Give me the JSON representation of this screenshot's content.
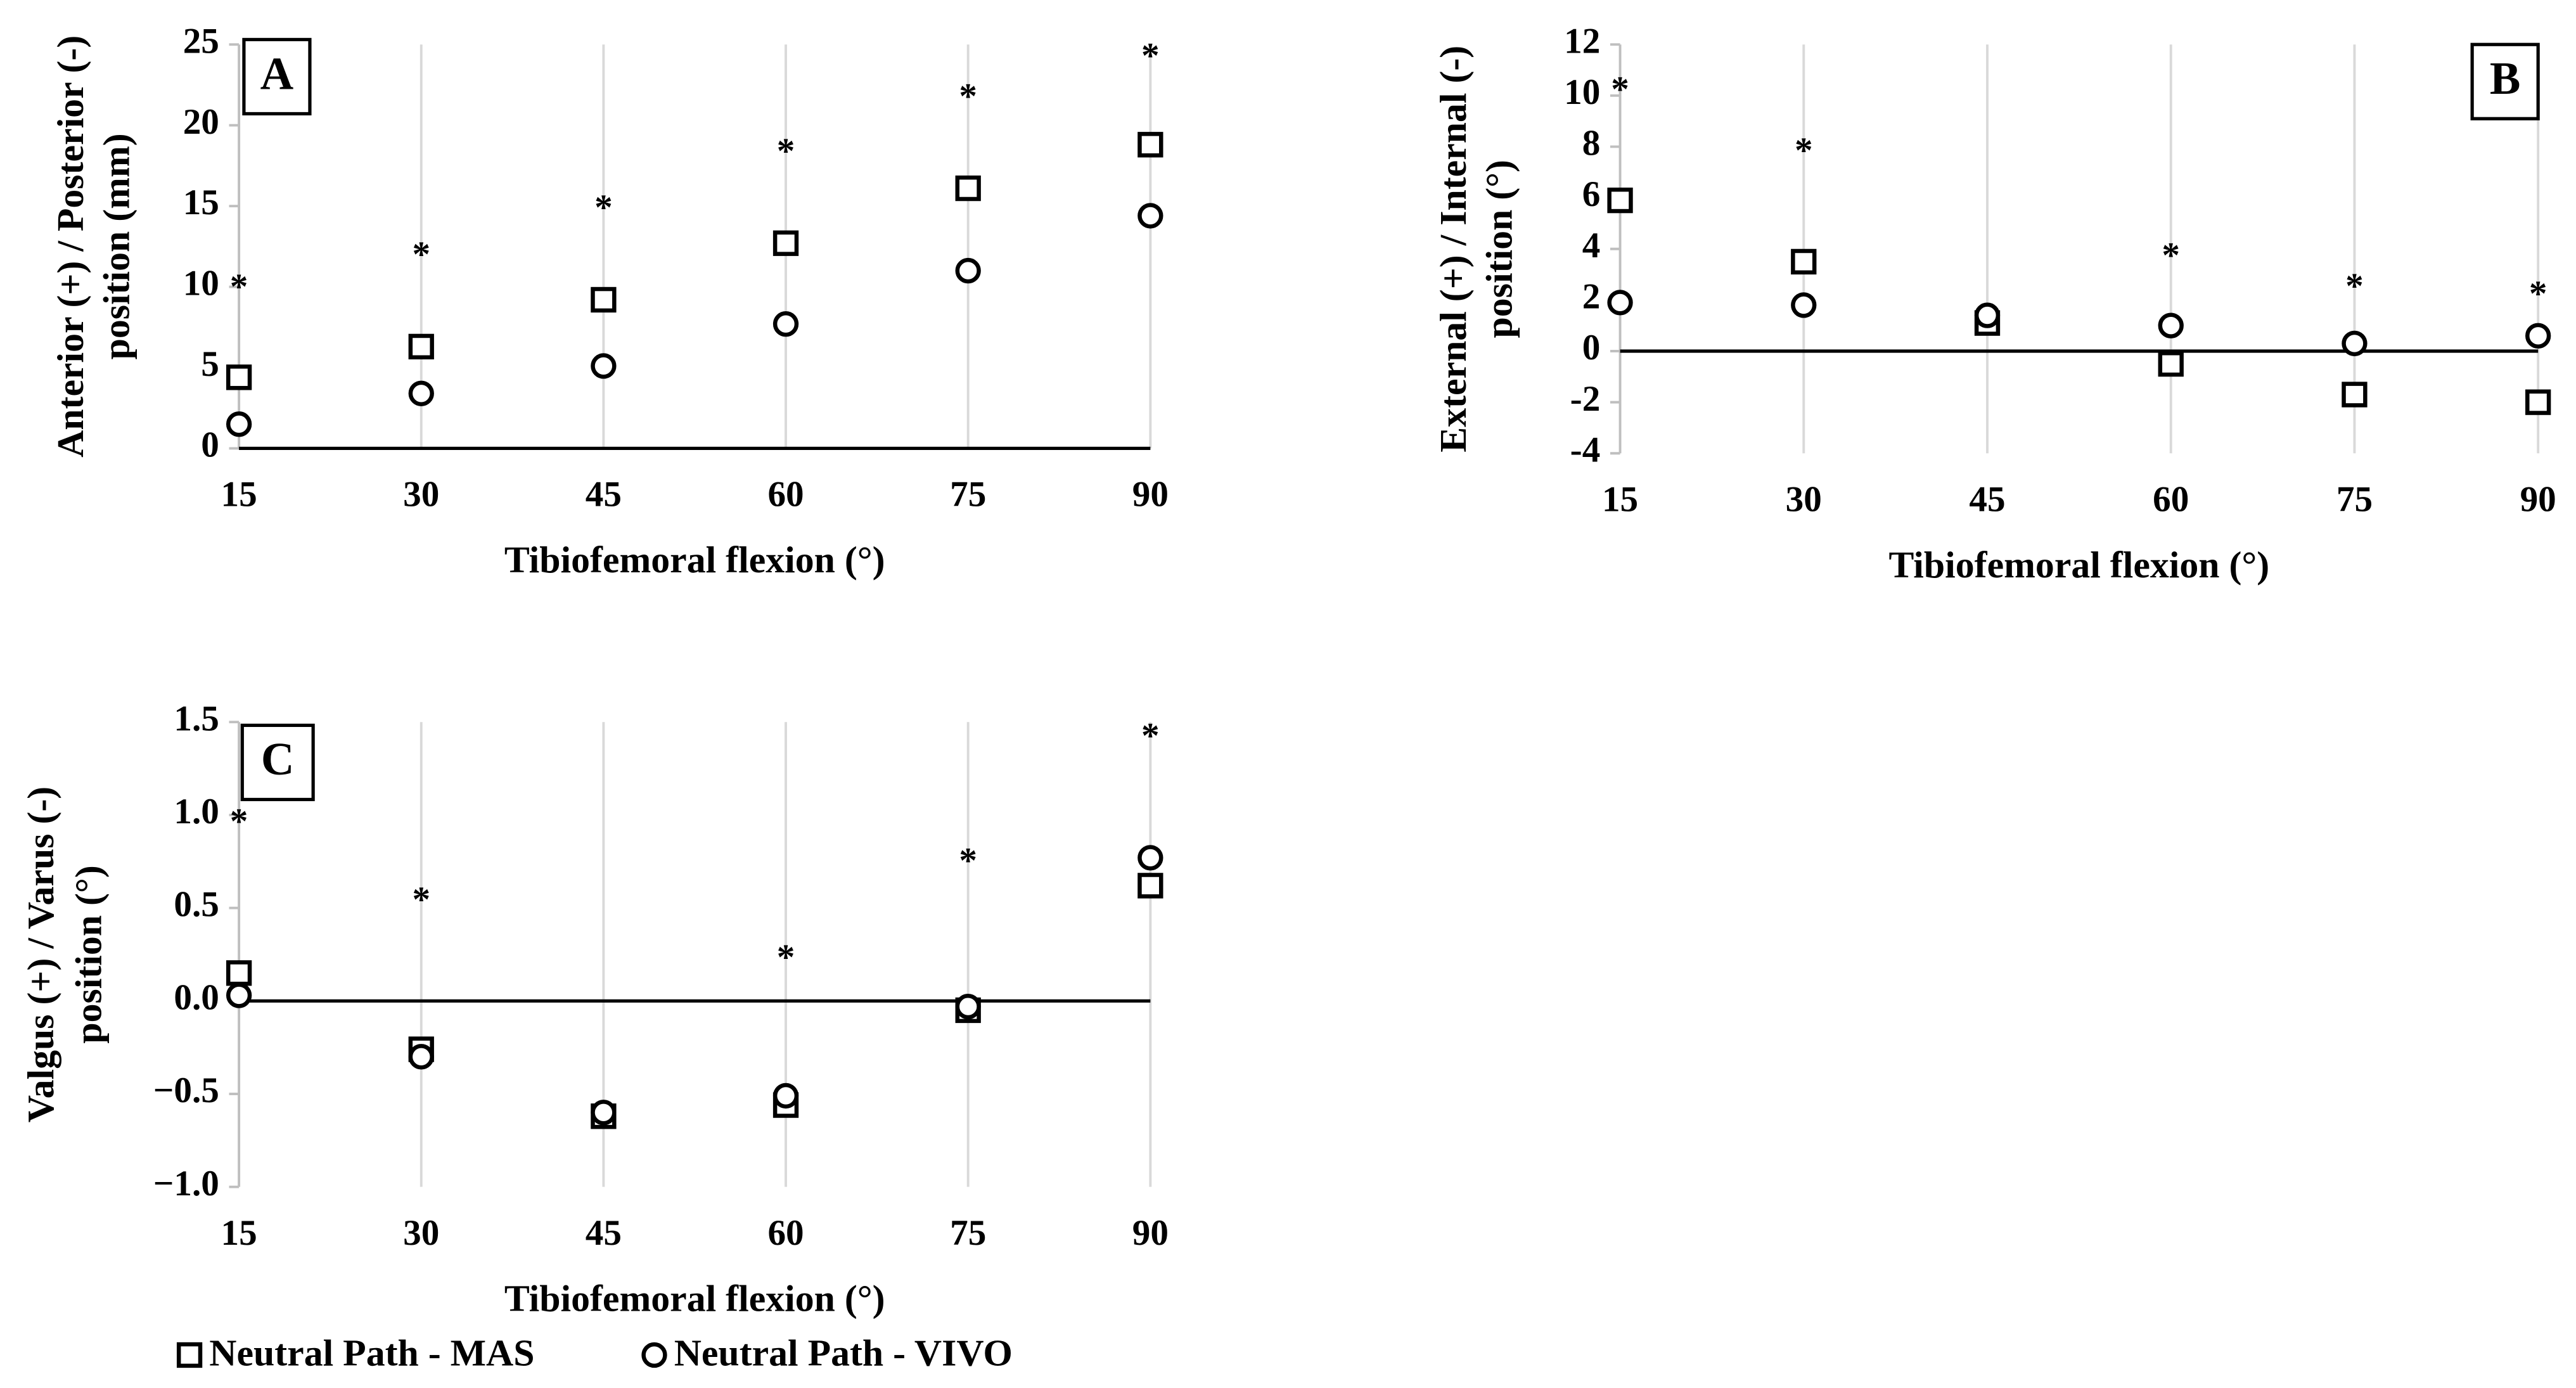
{
  "chart_data": [
    {
      "type": "scatter",
      "label": "A",
      "xlabel": "Tibiofemoral flexion (°)",
      "ylabel": [
        "Anterior (+) / Posterior (-)",
        "position (mm)"
      ],
      "x": [
        15,
        30,
        45,
        60,
        75,
        90
      ],
      "xlim": [
        15,
        90
      ],
      "xticks": [
        15,
        30,
        45,
        60,
        75,
        90
      ],
      "ylim": [
        0,
        25
      ],
      "yticks": [
        0,
        5,
        10,
        15,
        20,
        25
      ],
      "grid": true,
      "series": [
        {
          "marker": "square",
          "color": "#000000",
          "values": [
            4.4,
            6.3,
            9.2,
            12.7,
            16.1,
            18.8
          ]
        },
        {
          "marker": "circle",
          "color": "#000000",
          "values": [
            1.5,
            3.4,
            5.1,
            7.7,
            11.0,
            14.4
          ]
        }
      ],
      "annotations": [
        {
          "text": "*",
          "x": 15,
          "y": 10.4
        },
        {
          "text": "*",
          "x": 30,
          "y": 12.4
        },
        {
          "text": "*",
          "x": 45,
          "y": 15.3
        },
        {
          "text": "*",
          "x": 60,
          "y": 18.8
        },
        {
          "text": "*",
          "x": 75,
          "y": 22.2
        },
        {
          "text": "*",
          "x": 90,
          "y": 24.7
        }
      ]
    },
    {
      "type": "scatter",
      "label": "B",
      "xlabel": "Tibiofemoral flexion (°)",
      "ylabel": [
        "External (+) / Internal (-)",
        "position (°)"
      ],
      "x": [
        15,
        30,
        45,
        60,
        75,
        90
      ],
      "xlim": [
        15,
        90
      ],
      "xticks": [
        15,
        30,
        45,
        60,
        75,
        90
      ],
      "ylim": [
        -4,
        12
      ],
      "yticks": [
        -4,
        -2,
        0,
        2,
        4,
        6,
        8,
        10,
        12
      ],
      "grid": true,
      "series": [
        {
          "marker": "square",
          "color": "#000000",
          "values": [
            5.9,
            3.5,
            1.1,
            -0.5,
            -1.7,
            -2.0
          ]
        },
        {
          "marker": "circle",
          "color": "#000000",
          "values": [
            1.9,
            1.8,
            1.4,
            1.0,
            0.3,
            0.6
          ]
        }
      ],
      "annotations": [
        {
          "text": "*",
          "x": 15,
          "y": 10.5
        },
        {
          "text": "*",
          "x": 30,
          "y": 8.1
        },
        {
          "text": "*",
          "x": 60,
          "y": 4.0
        },
        {
          "text": "*",
          "x": 75,
          "y": 2.8
        },
        {
          "text": "*",
          "x": 90,
          "y": 2.5
        }
      ]
    },
    {
      "type": "scatter",
      "label": "C",
      "xlabel": "Tibiofemoral flexion (°)",
      "ylabel": [
        "Valgus (+) / Varus (-)",
        "position (°)"
      ],
      "x": [
        15,
        30,
        45,
        60,
        75,
        90
      ],
      "xlim": [
        15,
        90
      ],
      "xticks": [
        15,
        30,
        45,
        60,
        75,
        90
      ],
      "ylim": [
        -1.0,
        1.5
      ],
      "yticks": [
        {
          "value": -1.0,
          "label": "−1.0"
        },
        {
          "value": -0.5,
          "label": "−0.5"
        },
        {
          "value": 0,
          "label": "0.0"
        },
        0.5,
        {
          "value": 1.0,
          "label": "1.0"
        },
        1.5
      ],
      "grid": true,
      "series": [
        {
          "marker": "square",
          "color": "#000000",
          "values": [
            0.15,
            -0.26,
            -0.62,
            -0.56,
            -0.05,
            0.62
          ]
        },
        {
          "marker": "circle",
          "color": "#000000",
          "values": [
            0.03,
            -0.3,
            -0.6,
            -0.51,
            -0.03,
            0.77
          ]
        }
      ],
      "annotations": [
        {
          "text": "*",
          "x": 15,
          "y": 1.0
        },
        {
          "text": "*",
          "x": 30,
          "y": 0.58
        },
        {
          "text": "*",
          "x": 60,
          "y": 0.27
        },
        {
          "text": "*",
          "x": 75,
          "y": 0.79
        },
        {
          "text": "*",
          "x": 90,
          "y": 1.46
        }
      ]
    }
  ],
  "legend": [
    "Neutral Path - MAS",
    "Neutral Path - VIVO"
  ]
}
